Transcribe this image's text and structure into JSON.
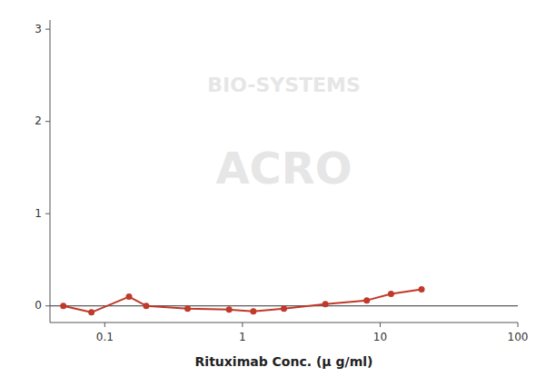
{
  "chart_data": {
    "type": "line",
    "xlabel": "Rituximab Conc. (μ g/ml)",
    "annotations": [
      "BIO-SYSTEMS",
      "ACRO"
    ],
    "x": [
      0.05,
      0.08,
      0.15,
      0.2,
      0.4,
      0.8,
      1.2,
      2.0,
      4.0,
      8.0,
      12.0,
      20.0
    ],
    "values": [
      0.0,
      -0.07,
      0.1,
      0.0,
      -0.03,
      -0.04,
      -0.06,
      -0.03,
      0.02,
      0.06,
      0.13,
      0.18
    ],
    "color": "#c0392b",
    "marker": "circle",
    "log": "x",
    "xlim": [
      0.04,
      100
    ],
    "xticks": [
      0.1,
      1,
      10,
      100
    ],
    "ylim": [
      -0.18,
      3.1
    ],
    "yticks": [
      0,
      1,
      2,
      3
    ],
    "grid": false
  }
}
